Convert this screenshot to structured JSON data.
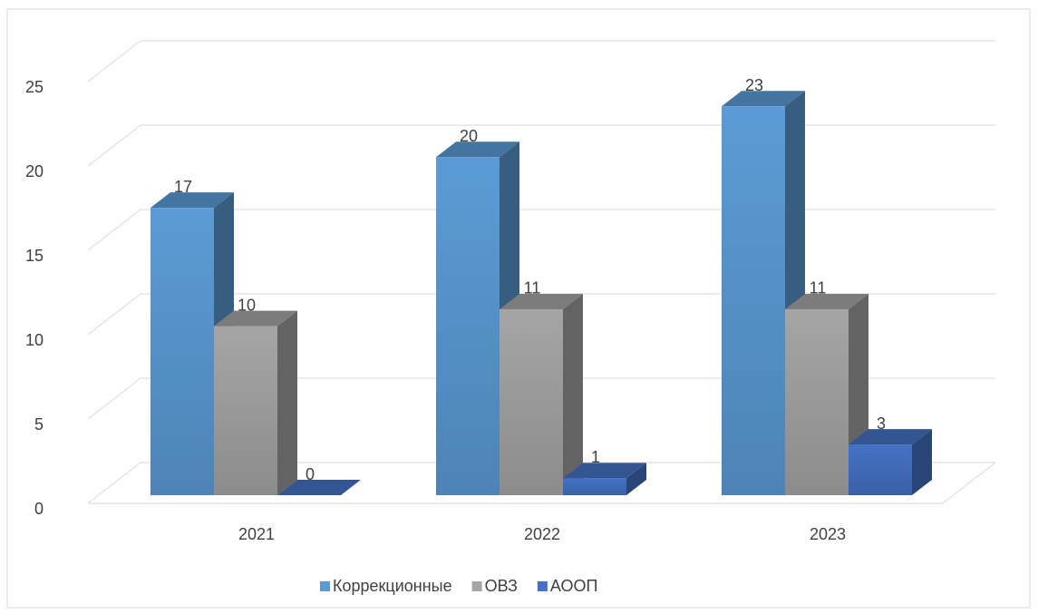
{
  "chart_data": {
    "type": "bar3d",
    "categories": [
      "2021",
      "2022",
      "2023"
    ],
    "series": [
      {
        "name": "Коррекционные",
        "color": "#5b9bd5",
        "values": [
          17,
          20,
          23
        ]
      },
      {
        "name": "ОВЗ",
        "color": "#a5a5a5",
        "values": [
          10,
          11,
          11
        ]
      },
      {
        "name": "АООП",
        "color": "#4472c4",
        "values": [
          0,
          1,
          3
        ]
      }
    ],
    "ylim": [
      0,
      25
    ],
    "yticks": [
      0,
      5,
      10,
      15,
      20,
      25
    ],
    "grid": true,
    "legend": "bottom"
  }
}
